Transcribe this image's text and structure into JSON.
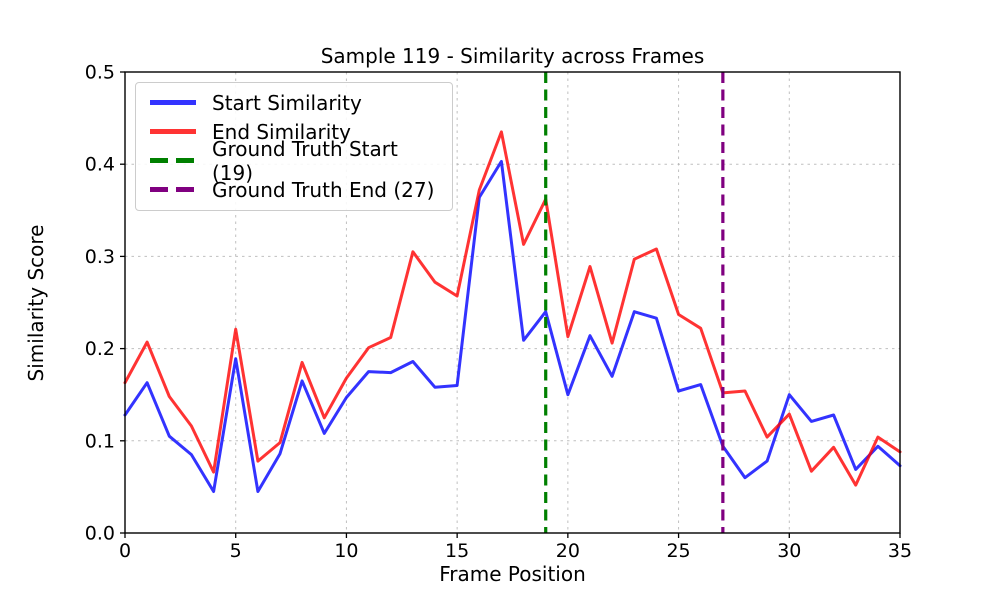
{
  "figure": {
    "title": "Sample 119 - Similarity across Frames"
  },
  "chart_data": {
    "type": "line",
    "title": "Sample 119 - Similarity across Frames",
    "xlabel": "Frame Position",
    "ylabel": "Similarity Score",
    "xlim": [
      0,
      35
    ],
    "ylim": [
      0.0,
      0.5
    ],
    "x_ticks": [
      0,
      5,
      10,
      15,
      20,
      25,
      30,
      35
    ],
    "x_tick_labels": [
      "0",
      "5",
      "10",
      "15",
      "20",
      "25",
      "30",
      "35"
    ],
    "y_ticks": [
      0.0,
      0.1,
      0.2,
      0.3,
      0.4,
      0.5
    ],
    "y_tick_labels": [
      "0.0",
      "0.1",
      "0.2",
      "0.3",
      "0.4",
      "0.5"
    ],
    "grid": true,
    "grid_color": "#b0b0b0",
    "legend_position": "upper-left",
    "x": [
      0,
      1,
      2,
      3,
      4,
      5,
      6,
      7,
      8,
      9,
      10,
      11,
      12,
      13,
      14,
      15,
      16,
      17,
      18,
      19,
      20,
      21,
      22,
      23,
      24,
      25,
      26,
      27,
      28,
      29,
      30,
      31,
      32,
      33,
      34,
      35
    ],
    "series": [
      {
        "name": "Start Similarity",
        "color": "#0000ff",
        "alpha": 0.8,
        "linestyle": "solid",
        "values": [
          0.128,
          0.163,
          0.105,
          0.085,
          0.045,
          0.189,
          0.045,
          0.086,
          0.165,
          0.108,
          0.147,
          0.175,
          0.174,
          0.186,
          0.158,
          0.16,
          0.364,
          0.403,
          0.209,
          0.24,
          0.15,
          0.214,
          0.17,
          0.24,
          0.233,
          0.154,
          0.161,
          0.094,
          0.06,
          0.078,
          0.15,
          0.121,
          0.128,
          0.069,
          0.094,
          0.073
        ]
      },
      {
        "name": "End Similarity",
        "color": "#ff0000",
        "alpha": 0.8,
        "linestyle": "solid",
        "values": [
          0.163,
          0.207,
          0.148,
          0.116,
          0.066,
          0.221,
          0.078,
          0.098,
          0.185,
          0.125,
          0.168,
          0.201,
          0.212,
          0.305,
          0.272,
          0.257,
          0.372,
          0.435,
          0.313,
          0.362,
          0.213,
          0.289,
          0.206,
          0.297,
          0.308,
          0.237,
          0.222,
          0.152,
          0.154,
          0.104,
          0.129,
          0.067,
          0.093,
          0.052,
          0.104,
          0.088
        ]
      }
    ],
    "vlines": [
      {
        "label": "Ground Truth Start (19)",
        "x": 19,
        "color": "#008000",
        "alpha": 1,
        "linestyle": "dashed"
      },
      {
        "label": "Ground Truth End (27)",
        "x": 27,
        "color": "#800080",
        "alpha": 1,
        "linestyle": "dashed"
      }
    ]
  }
}
